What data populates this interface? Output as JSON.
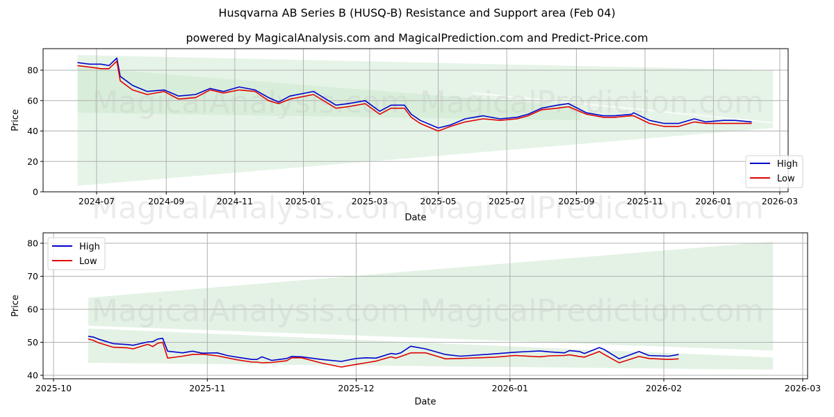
{
  "title": "Husqvarna AB Series B (HUSQ-B) Resistance and Support area (Feb 04)",
  "subtitle": "powered by MagicalAnalysis.com and MagicalPrediction.com and Predict-Price.com",
  "watermarks": [
    "MagicalAnalysis.com",
    "MagicalPrediction.com"
  ],
  "colors": {
    "high": "#0000cc",
    "low": "#e00000",
    "band": "#c8e6c9",
    "grid": "#b0b0b0"
  },
  "chart_data": [
    {
      "type": "line",
      "title": "Husqvarna AB Series B (HUSQ-B) Resistance and Support area (Feb 04)",
      "xlabel": "Date",
      "ylabel": "Price",
      "ylim": [
        0,
        90
      ],
      "yticks": [
        0,
        20,
        40,
        60,
        80
      ],
      "xticks": [
        "2024-07",
        "2024-09",
        "2024-11",
        "2025-01",
        "2025-03",
        "2025-05",
        "2025-07",
        "2025-09",
        "2025-11",
        "2026-01",
        "2026-03"
      ],
      "grid": true,
      "legend": {
        "position": "lower right",
        "entries": [
          "High",
          "Low"
        ]
      },
      "x": [
        "2024-06-14",
        "2024-06-25",
        "2024-07-05",
        "2024-07-12",
        "2024-07-19",
        "2024-07-22",
        "2024-08-02",
        "2024-08-15",
        "2024-08-30",
        "2024-09-12",
        "2024-09-27",
        "2024-10-10",
        "2024-10-22",
        "2024-11-05",
        "2024-11-19",
        "2024-12-01",
        "2024-12-10",
        "2024-12-20",
        "2025-01-10",
        "2025-01-30",
        "2025-02-10",
        "2025-02-25",
        "2025-03-10",
        "2025-03-20",
        "2025-04-01",
        "2025-04-07",
        "2025-04-15",
        "2025-05-01",
        "2025-05-12",
        "2025-05-25",
        "2025-06-10",
        "2025-06-25",
        "2025-07-10",
        "2025-07-20",
        "2025-08-01",
        "2025-08-15",
        "2025-08-25",
        "2025-09-10",
        "2025-09-25",
        "2025-10-05",
        "2025-10-20",
        "2025-10-22",
        "2025-11-05",
        "2025-11-18",
        "2025-12-01",
        "2025-12-15",
        "2025-12-25",
        "2026-01-10",
        "2026-01-20",
        "2026-02-04"
      ],
      "series": [
        {
          "name": "High",
          "values": [
            85,
            84,
            84,
            83,
            88,
            76,
            70,
            66,
            67,
            63,
            64,
            68,
            66,
            69,
            67,
            62,
            59,
            63,
            66,
            57,
            58,
            60,
            53,
            57,
            57,
            51,
            47,
            42,
            44,
            48,
            50,
            48,
            49,
            51,
            55,
            57,
            58,
            52,
            50,
            50,
            51,
            52,
            47,
            45,
            45,
            48,
            46,
            47,
            47,
            46
          ]
        },
        {
          "name": "Low",
          "values": [
            83,
            82,
            81,
            81,
            86,
            73,
            67,
            64,
            66,
            61,
            62,
            67,
            65,
            67,
            66,
            60,
            58,
            61,
            64,
            55,
            56,
            58,
            51,
            55,
            55,
            49,
            45,
            40,
            43,
            46,
            48,
            47,
            48,
            50,
            54,
            55,
            56,
            51,
            49,
            49,
            50,
            50,
            45,
            43,
            43,
            46,
            45,
            45,
            45,
            45
          ]
        }
      ],
      "bands": [
        {
          "name": "outer",
          "start": "2024-06-14",
          "end": "2026-02-23",
          "upper": [
            90,
            80
          ],
          "lower": [
            4,
            42
          ]
        },
        {
          "name": "inner",
          "start": "2024-06-14",
          "end": "2025-09-05",
          "upper": [
            82,
            56
          ],
          "lower": [
            52,
            47
          ]
        }
      ]
    },
    {
      "type": "line",
      "xlabel": "Date",
      "ylabel": "Price",
      "ylim": [
        39.5,
        82
      ],
      "yticks": [
        40,
        50,
        60,
        70,
        80
      ],
      "xticks": [
        "2025-10",
        "2025-11",
        "2025-12",
        "2026-01",
        "2026-02",
        "2026-03"
      ],
      "grid": true,
      "legend": {
        "position": "upper left",
        "entries": [
          "High",
          "Low"
        ]
      },
      "x": [
        "2025-10-08",
        "2025-10-09",
        "2025-10-10",
        "2025-10-13",
        "2025-10-16",
        "2025-10-17",
        "2025-10-20",
        "2025-10-21",
        "2025-10-22",
        "2025-10-23",
        "2025-10-24",
        "2025-10-27",
        "2025-10-29",
        "2025-10-31",
        "2025-11-03",
        "2025-11-05",
        "2025-11-07",
        "2025-11-10",
        "2025-11-11",
        "2025-11-12",
        "2025-11-14",
        "2025-11-17",
        "2025-11-18",
        "2025-11-20",
        "2025-11-24",
        "2025-11-28",
        "2025-12-01",
        "2025-12-03",
        "2025-12-05",
        "2025-12-08",
        "2025-12-09",
        "2025-12-10",
        "2025-12-12",
        "2025-12-15",
        "2025-12-19",
        "2025-12-22",
        "2025-12-29",
        "2026-01-02",
        "2026-01-07",
        "2026-01-09",
        "2026-01-12",
        "2026-01-13",
        "2026-01-15",
        "2026-01-16",
        "2026-01-19",
        "2026-01-20",
        "2026-01-23",
        "2026-01-27",
        "2026-01-29",
        "2026-02-02",
        "2026-02-04"
      ],
      "series": [
        {
          "name": "High",
          "values": [
            51.8,
            51.6,
            51.0,
            49.6,
            49.3,
            49.1,
            50.1,
            50.2,
            51.0,
            51.2,
            47.3,
            46.8,
            47.3,
            46.7,
            46.8,
            46.0,
            45.5,
            44.8,
            44.8,
            45.6,
            44.5,
            45.1,
            45.7,
            45.6,
            44.8,
            44.2,
            45.1,
            45.3,
            45.2,
            46.6,
            46.4,
            46.8,
            48.8,
            48.0,
            46.3,
            45.8,
            46.5,
            47.0,
            47.4,
            47.1,
            46.8,
            47.5,
            47.2,
            46.6,
            48.4,
            47.8,
            45.0,
            47.2,
            46.0,
            45.8,
            46.3
          ]
        },
        {
          "name": "Low",
          "values": [
            51.0,
            50.6,
            49.9,
            48.5,
            48.3,
            48.0,
            49.4,
            48.7,
            49.7,
            50.0,
            45.2,
            45.8,
            46.3,
            46.4,
            45.9,
            45.3,
            44.7,
            44.0,
            44.0,
            43.8,
            43.9,
            44.4,
            45.3,
            45.3,
            43.7,
            42.5,
            43.3,
            43.8,
            44.3,
            45.6,
            45.2,
            45.7,
            46.8,
            46.8,
            45.0,
            45.1,
            45.5,
            46.0,
            45.6,
            45.9,
            46.0,
            46.2,
            45.7,
            45.5,
            47.2,
            46.3,
            43.8,
            45.7,
            45.1,
            44.8,
            45.0
          ]
        }
      ],
      "bands": [
        {
          "name": "upper_band",
          "start": "2025-10-08",
          "end": "2026-02-23",
          "upper": [
            63.5,
            80.5
          ],
          "lower": [
            55.0,
            47.5
          ]
        },
        {
          "name": "lower_band",
          "start": "2025-10-08",
          "end": "2026-02-23",
          "upper": [
            54.2,
            45.4
          ],
          "lower": [
            43.8,
            41.7
          ]
        }
      ]
    }
  ]
}
